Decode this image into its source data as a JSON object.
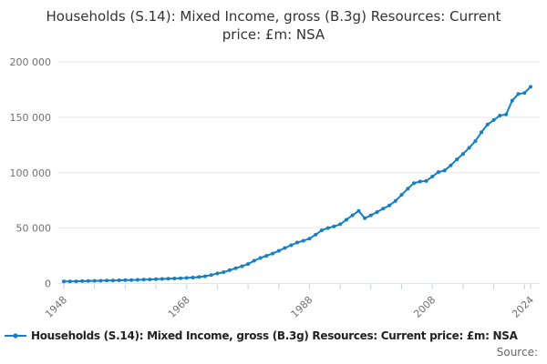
{
  "title": "Households (S.14): Mixed Income, gross (B.3g) Resources: Current price: £m: NSA",
  "legend": {
    "label": "Households (S.14): Mixed Income, gross (B.3g) Resources: Current price: £m: NSA",
    "marker": "line-with-dot"
  },
  "source_label": "Source:",
  "colors": {
    "series_line": "#1380c6",
    "gridline": "#e6e6e6",
    "tick_mark": "#b9cde3",
    "axis_text": "#707070",
    "title_text": "#333333",
    "legend_text": "#222222",
    "background": "#ffffff"
  },
  "chart_data": {
    "type": "line",
    "title": "Households (S.14): Mixed Income, gross (B.3g) Resources: Current price: £m: NSA",
    "xlabel": "",
    "ylabel": "",
    "x": [
      1948,
      1949,
      1950,
      1951,
      1952,
      1953,
      1954,
      1955,
      1956,
      1957,
      1958,
      1959,
      1960,
      1961,
      1962,
      1963,
      1964,
      1965,
      1966,
      1967,
      1968,
      1969,
      1970,
      1971,
      1972,
      1973,
      1974,
      1975,
      1976,
      1977,
      1978,
      1979,
      1980,
      1981,
      1982,
      1983,
      1984,
      1985,
      1986,
      1987,
      1988,
      1989,
      1990,
      1991,
      1992,
      1993,
      1994,
      1995,
      1996,
      1997,
      1998,
      1999,
      2000,
      2001,
      2002,
      2003,
      2004,
      2005,
      2006,
      2007,
      2008,
      2009,
      2010,
      2011,
      2012,
      2013,
      2014,
      2015,
      2016,
      2017,
      2018,
      2019,
      2020,
      2021,
      2022,
      2023,
      2024
    ],
    "series": [
      {
        "name": "Households (S.14): Mixed Income, gross (B.3g) Resources: Current price: £m: NSA",
        "values": [
          1800,
          1900,
          2000,
          2150,
          2250,
          2350,
          2450,
          2600,
          2750,
          2900,
          3000,
          3150,
          3300,
          3500,
          3650,
          3850,
          4100,
          4300,
          4500,
          4700,
          5000,
          5300,
          5800,
          6500,
          7600,
          9000,
          10200,
          12000,
          13800,
          15500,
          17600,
          20500,
          23000,
          25000,
          27000,
          29500,
          32000,
          34500,
          37000,
          38500,
          40500,
          44000,
          48000,
          50000,
          51500,
          53500,
          57500,
          61500,
          65500,
          59000,
          61500,
          64500,
          67500,
          70500,
          74500,
          80000,
          85500,
          90500,
          92000,
          92500,
          96500,
          100500,
          102000,
          106500,
          112000,
          117000,
          122500,
          128500,
          136500,
          143500,
          147500,
          151500,
          152500,
          165000,
          171000,
          172000,
          177500
        ]
      }
    ],
    "xlim": [
      1948,
      2024
    ],
    "ylim": [
      0,
      200000
    ],
    "yticks": {
      "values": [
        0,
        50000,
        100000,
        150000,
        200000
      ],
      "labels": [
        "0",
        "50 000",
        "100 000",
        "150 000",
        "200 000"
      ]
    },
    "xticks": {
      "labeled_values": [
        1948,
        1968,
        1988,
        2008,
        2024
      ],
      "labels": [
        "1948",
        "1968",
        "1988",
        "2008",
        "2024"
      ],
      "minor_tick_step_years": 5
    },
    "grid": "horizontal",
    "marker": "circle",
    "legend_position": "bottom-left"
  }
}
